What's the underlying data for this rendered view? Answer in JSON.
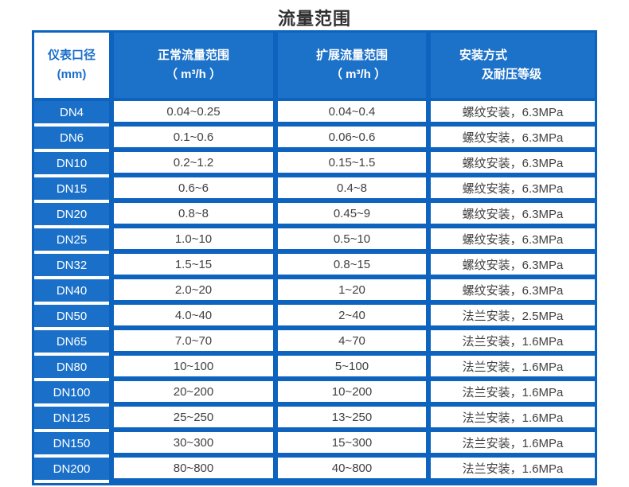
{
  "page": {
    "title": "流量范围"
  },
  "colors": {
    "table_blue": "#0d63be",
    "header_cell_blue": "#1c71c9",
    "dn_cell_blue": "#1a70c8",
    "header_col1_text": "#1b6fc8",
    "cell_text": "#414141",
    "title_text": "#303030"
  },
  "table": {
    "headers": [
      {
        "line1": "仪表口径",
        "line2": "(mm)"
      },
      {
        "line1": "正常流量范围",
        "line2": "（ m³/h ）"
      },
      {
        "line1": "扩展流量范围",
        "line2": "（ m³/h ）"
      },
      {
        "line1": "安装方式",
        "line2": "及耐压等级"
      }
    ],
    "rows": [
      {
        "dn": "DN4",
        "normal": "0.04~0.25",
        "extended": "0.04~0.4",
        "install": "螺纹安装，6.3MPa"
      },
      {
        "dn": "DN6",
        "normal": "0.1~0.6",
        "extended": "0.06~0.6",
        "install": "螺纹安装，6.3MPa"
      },
      {
        "dn": "DN10",
        "normal": "0.2~1.2",
        "extended": "0.15~1.5",
        "install": "螺纹安装，6.3MPa"
      },
      {
        "dn": "DN15",
        "normal": "0.6~6",
        "extended": "0.4~8",
        "install": "螺纹安装，6.3MPa"
      },
      {
        "dn": "DN20",
        "normal": "0.8~8",
        "extended": "0.45~9",
        "install": "螺纹安装，6.3MPa"
      },
      {
        "dn": "DN25",
        "normal": "1.0~10",
        "extended": "0.5~10",
        "install": "螺纹安装，6.3MPa"
      },
      {
        "dn": "DN32",
        "normal": "1.5~15",
        "extended": "0.8~15",
        "install": "螺纹安装，6.3MPa"
      },
      {
        "dn": "DN40",
        "normal": "2.0~20",
        "extended": "1~20",
        "install": "螺纹安装，6.3MPa"
      },
      {
        "dn": "DN50",
        "normal": "4.0~40",
        "extended": "2~40",
        "install": "法兰安装，2.5MPa"
      },
      {
        "dn": "DN65",
        "normal": "7.0~70",
        "extended": "4~70",
        "install": "法兰安装，1.6MPa"
      },
      {
        "dn": "DN80",
        "normal": "10~100",
        "extended": "5~100",
        "install": "法兰安装，1.6MPa"
      },
      {
        "dn": "DN100",
        "normal": "20~200",
        "extended": "10~200",
        "install": "法兰安装，1.6MPa"
      },
      {
        "dn": "DN125",
        "normal": "25~250",
        "extended": "13~250",
        "install": "法兰安装，1.6MPa"
      },
      {
        "dn": "DN150",
        "normal": "30~300",
        "extended": "15~300",
        "install": "法兰安装，1.6MPa"
      },
      {
        "dn": "DN200",
        "normal": "80~800",
        "extended": "40~800",
        "install": "法兰安装，1.6MPa"
      }
    ]
  }
}
